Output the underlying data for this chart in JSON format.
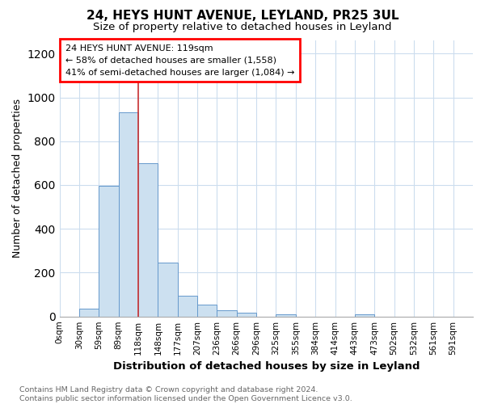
{
  "title1": "24, HEYS HUNT AVENUE, LEYLAND, PR25 3UL",
  "title2": "Size of property relative to detached houses in Leyland",
  "xlabel": "Distribution of detached houses by size in Leyland",
  "ylabel": "Number of detached properties",
  "bins": [
    "0sqm",
    "30sqm",
    "59sqm",
    "89sqm",
    "118sqm",
    "148sqm",
    "177sqm",
    "207sqm",
    "236sqm",
    "266sqm",
    "296sqm",
    "325sqm",
    "355sqm",
    "384sqm",
    "414sqm",
    "443sqm",
    "473sqm",
    "502sqm",
    "532sqm",
    "561sqm",
    "591sqm"
  ],
  "values": [
    0,
    35,
    595,
    930,
    700,
    245,
    95,
    55,
    30,
    17,
    0,
    10,
    0,
    0,
    0,
    10,
    0,
    0,
    0,
    0,
    0
  ],
  "bar_color": "#cce0f0",
  "bar_edge_color": "#6699cc",
  "vline_bin_index": 4,
  "annotation_line1": "24 HEYS HUNT AVENUE: 119sqm",
  "annotation_line2": "← 58% of detached houses are smaller (1,558)",
  "annotation_line3": "41% of semi-detached houses are larger (1,084) →",
  "vline_color": "#cc3333",
  "footer_text": "Contains HM Land Registry data © Crown copyright and database right 2024.\nContains public sector information licensed under the Open Government Licence v3.0.",
  "ylim_max": 1260,
  "yticks": [
    0,
    200,
    400,
    600,
    800,
    1000,
    1200
  ],
  "background_color": "white",
  "grid_color": "#ccddee",
  "bin_width": 29.5
}
